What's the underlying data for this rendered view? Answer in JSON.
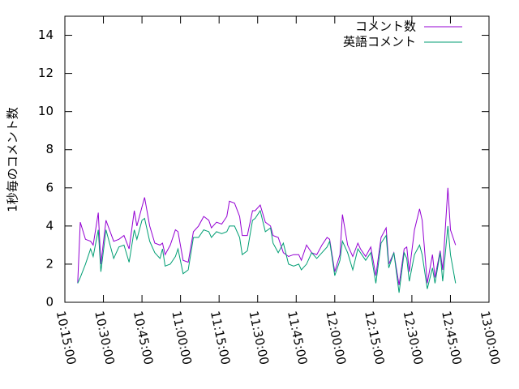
{
  "chart_data": {
    "type": "line",
    "ylabel": "1秒毎のコメント数",
    "x": [
      "10:20:00",
      "10:21:00",
      "10:23:00",
      "10:25:00",
      "10:26:00",
      "10:28:00",
      "10:29:00",
      "10:31:00",
      "10:34:00",
      "10:36:00",
      "10:38:00",
      "10:40:00",
      "10:42:00",
      "10:43:00",
      "10:45:00",
      "10:46:00",
      "10:48:00",
      "10:50:00",
      "10:52:00",
      "10:53:00",
      "10:54:00",
      "10:56:00",
      "10:58:00",
      "10:59:00",
      "11:01:00",
      "11:03:00",
      "11:05:00",
      "11:07:00",
      "11:09:00",
      "11:11:00",
      "11:12:00",
      "11:14:00",
      "11:16:00",
      "11:18:00",
      "11:19:00",
      "11:21:00",
      "11:23:00",
      "11:24:00",
      "11:26:00",
      "11:28:00",
      "11:29:00",
      "11:31:00",
      "11:33:00",
      "11:35:00",
      "11:36:00",
      "11:38:00",
      "11:40:00",
      "11:42:00",
      "11:44:00",
      "11:46:00",
      "11:47:00",
      "11:49:00",
      "11:51:00",
      "11:53:00",
      "11:55:00",
      "11:57:00",
      "11:58:00",
      "12:00:00",
      "12:02:00",
      "12:03:00",
      "12:05:00",
      "12:07:00",
      "12:09:00",
      "12:10:00",
      "12:12:00",
      "12:14:00",
      "12:16:00",
      "12:18:00",
      "12:20:00",
      "12:21:00",
      "12:23:00",
      "12:25:00",
      "12:27:00",
      "12:28:00",
      "12:29:00",
      "12:31:00",
      "12:33:00",
      "12:34:00",
      "12:36:00",
      "12:38:00",
      "12:39:00",
      "12:41:00",
      "12:42:00",
      "12:44:00",
      "12:45:00",
      "12:47:00"
    ],
    "series": [
      {
        "name": "コメント数",
        "color": "#9400d3",
        "values": [
          1.0,
          4.2,
          3.3,
          3.2,
          3.0,
          4.7,
          2.0,
          4.3,
          3.2,
          3.3,
          3.5,
          2.8,
          4.8,
          4.0,
          5.0,
          5.5,
          4.0,
          3.1,
          3.0,
          3.1,
          2.5,
          3.0,
          3.8,
          3.7,
          2.2,
          2.1,
          3.7,
          4.0,
          4.5,
          4.3,
          3.9,
          4.2,
          4.1,
          4.5,
          5.3,
          5.2,
          4.5,
          3.5,
          3.5,
          4.8,
          4.8,
          5.1,
          4.2,
          4.0,
          3.5,
          3.4,
          2.6,
          2.4,
          2.5,
          2.5,
          2.2,
          3.0,
          2.6,
          2.5,
          3.0,
          3.4,
          3.3,
          1.6,
          2.5,
          4.6,
          3.0,
          2.4,
          3.1,
          2.8,
          2.4,
          2.9,
          1.4,
          3.4,
          3.9,
          2.0,
          2.6,
          0.9,
          2.8,
          2.9,
          1.6,
          3.8,
          4.9,
          4.3,
          1.0,
          2.5,
          1.3,
          2.7,
          1.7,
          6.0,
          3.8,
          3.0
        ]
      },
      {
        "name": "英語コメント",
        "color": "#009e73",
        "values": [
          1.0,
          1.3,
          2.0,
          2.8,
          2.4,
          3.8,
          1.6,
          3.8,
          2.3,
          2.9,
          3.0,
          2.1,
          3.8,
          3.3,
          4.3,
          4.4,
          3.2,
          2.6,
          2.3,
          2.8,
          1.9,
          2.0,
          2.4,
          2.8,
          1.5,
          1.7,
          3.4,
          3.4,
          3.8,
          3.7,
          3.4,
          3.7,
          3.6,
          3.7,
          4.0,
          4.0,
          3.4,
          2.5,
          2.7,
          4.3,
          4.4,
          4.8,
          3.7,
          3.9,
          3.1,
          2.6,
          3.1,
          2.0,
          1.9,
          2.0,
          1.7,
          2.0,
          2.6,
          2.3,
          2.6,
          2.9,
          3.2,
          1.4,
          2.2,
          3.2,
          2.6,
          1.7,
          2.8,
          2.6,
          2.2,
          2.6,
          1.0,
          3.1,
          3.5,
          1.8,
          2.6,
          0.5,
          2.6,
          2.3,
          1.1,
          2.5,
          3.0,
          2.5,
          0.7,
          1.8,
          1.0,
          2.6,
          1.1,
          4.0,
          2.5,
          1.0
        ]
      }
    ],
    "xlim": [
      "10:15:00",
      "13:00:00"
    ],
    "xticks": [
      "10:15:00",
      "10:30:00",
      "10:45:00",
      "11:00:00",
      "11:15:00",
      "11:30:00",
      "11:45:00",
      "12:00:00",
      "12:15:00",
      "12:30:00",
      "12:45:00",
      "13:00:00"
    ],
    "ylim": [
      0,
      15
    ],
    "yticks": [
      0,
      2,
      4,
      6,
      8,
      10,
      12,
      14
    ],
    "legend": "top-right"
  }
}
